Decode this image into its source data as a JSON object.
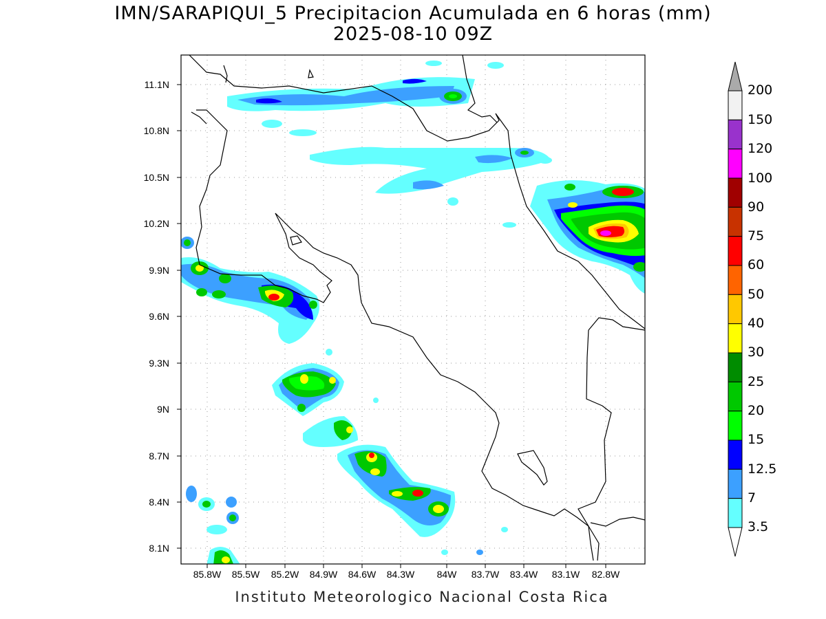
{
  "title": {
    "line1": "IMN/SARAPIQUI_5 Precipitacion Acumulada en 6 horas (mm)",
    "line2": "2025-08-10 09Z"
  },
  "footer": "Instituto Meteorologico Nacional Costa Rica",
  "axes": {
    "lat_labels": [
      "11.1N",
      "10.8N",
      "10.5N",
      "10.2N",
      "9.9N",
      "9.6N",
      "9.3N",
      "9N",
      "8.7N",
      "8.4N",
      "8.1N"
    ],
    "lon_labels": [
      "85.8W",
      "85.5W",
      "85.2W",
      "84.9W",
      "84.6W",
      "84.3W",
      "84W",
      "83.7W",
      "83.4W",
      "83.1W",
      "82.8W"
    ]
  },
  "colorbar": {
    "labels": [
      "200",
      "150",
      "120",
      "100",
      "90",
      "75",
      "60",
      "50",
      "40",
      "30",
      "25",
      "20",
      "15",
      "12.5",
      "7",
      "3.5"
    ],
    "colors": [
      "#f2f2f2",
      "#9932cc",
      "#ff00ff",
      "#a00000",
      "#c83200",
      "#ff0000",
      "#ff6400",
      "#ffc800",
      "#ffff00",
      "#008c00",
      "#00c800",
      "#00ff00",
      "#0000ff",
      "#3ca0ff",
      "#64ffff"
    ],
    "top_arrow_color": "#aaaaaa",
    "bottom_arrow_color": "#ffffff"
  },
  "palette": {
    "c3_5": "#64ffff",
    "c7": "#3ca0ff",
    "c12_5": "#0000ff",
    "c15": "#00ff00",
    "c20": "#00c800",
    "c25": "#008c00",
    "c30": "#ffff00",
    "c40": "#ffc800",
    "c50": "#ff6400",
    "c60": "#ff0000",
    "c75": "#c83200",
    "c120": "#ff00ff"
  }
}
